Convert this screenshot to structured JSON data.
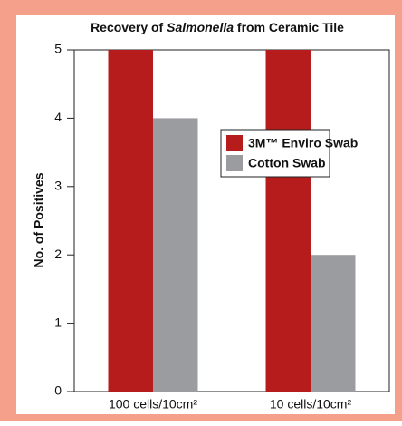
{
  "chart_data": {
    "type": "bar",
    "title": [
      "Recovery of",
      "Salmonella",
      "from Ceramic Tile"
    ],
    "y_label": "No. of Positives",
    "categories": [
      "100 cells/10cm²",
      "10 cells/10cm²"
    ],
    "series": [
      {
        "name": "3M™ Enviro Swab",
        "color": "#b71c1c",
        "values": [
          5,
          5
        ]
      },
      {
        "name": "Cotton Swab",
        "color": "#9a9c9f",
        "values": [
          4,
          2
        ]
      }
    ],
    "ylim": [
      0,
      5
    ],
    "yticks": [
      0,
      1,
      2,
      3,
      4,
      5
    ],
    "grid": false,
    "legend": "right"
  }
}
